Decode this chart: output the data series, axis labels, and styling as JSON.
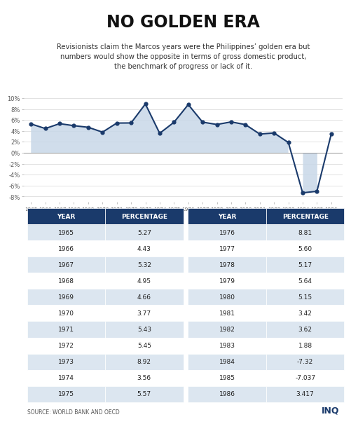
{
  "title": "NO GOLDEN ERA",
  "subtitle": "Revisionists claim the Marcos years were the Philippines’ golden era but\nnumbers would show the opposite in terms of gross domestic product,\nthe benchmark of progress or lack of it.",
  "years": [
    1965,
    1966,
    1967,
    1968,
    1969,
    1970,
    1971,
    1972,
    1973,
    1974,
    1975,
    1976,
    1977,
    1978,
    1979,
    1980,
    1981,
    1982,
    1983,
    1984,
    1985,
    1986
  ],
  "values": [
    5.27,
    4.43,
    5.32,
    4.95,
    4.66,
    3.77,
    5.43,
    5.45,
    8.92,
    3.56,
    5.57,
    8.81,
    5.6,
    5.17,
    5.64,
    5.15,
    3.42,
    3.62,
    1.88,
    -7.32,
    -7.037,
    3.417
  ],
  "left_table_years": [
    "1965",
    "1966",
    "1967",
    "1968",
    "1969",
    "1970",
    "1971",
    "1972",
    "1973",
    "1974",
    "1975"
  ],
  "left_table_values": [
    "5.27",
    "4.43",
    "5.32",
    "4.95",
    "4.66",
    "3.77",
    "5.43",
    "5.45",
    "8.92",
    "3.56",
    "5.57"
  ],
  "right_table_years": [
    "1976",
    "1977",
    "1978",
    "1979",
    "1980",
    "1981",
    "1982",
    "1983",
    "1984",
    "1985",
    "1986"
  ],
  "right_table_values": [
    "8.81",
    "5.60",
    "5.17",
    "5.64",
    "5.15",
    "3.42",
    "3.62",
    "1.88",
    "-7.32",
    "-7.037",
    "3.417"
  ],
  "line_color": "#1a3a6b",
  "fill_color": "#c8d8e8",
  "marker_color": "#1a3a6b",
  "bg_color": "#ffffff",
  "table_header_bg": "#1a3a6b",
  "table_header_fg": "#ffffff",
  "table_row_bg1": "#ffffff",
  "table_row_bg2": "#dce6f0",
  "source_text": "SOURCE: WORLD BANK AND OECD",
  "inq_text": "INQ",
  "ylim": [
    -9,
    11
  ],
  "yticks": [
    -8,
    -6,
    -4,
    -2,
    0,
    2,
    4,
    6,
    8,
    10
  ]
}
